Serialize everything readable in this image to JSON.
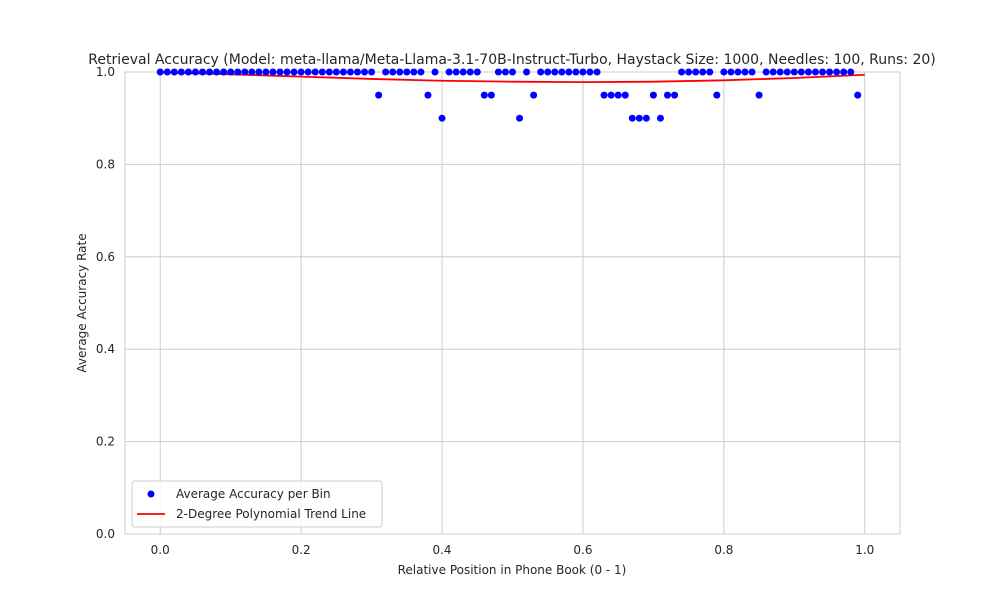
{
  "chart_data": {
    "type": "scatter",
    "title": "Retrieval Accuracy (Model: meta-llama/Meta-Llama-3.1-70B-Instruct-Turbo, Haystack Size: 1000, Needles: 100, Runs: 20)",
    "xlabel": "Relative Position in Phone Book (0 - 1)",
    "ylabel": "Average Accuracy Rate",
    "xlim": [
      -0.05,
      1.05
    ],
    "ylim": [
      0.0,
      1.0
    ],
    "xticks": [
      0.0,
      0.2,
      0.4,
      0.6,
      0.8,
      1.0
    ],
    "yticks": [
      0.0,
      0.2,
      0.4,
      0.6,
      0.8,
      1.0
    ],
    "xtick_labels": [
      "0.0",
      "0.2",
      "0.4",
      "0.6",
      "0.8",
      "1.0"
    ],
    "ytick_labels": [
      "0.0",
      "0.2",
      "0.4",
      "0.6",
      "0.8",
      "1.0"
    ],
    "grid": true,
    "legend_position": "lower-left",
    "series": [
      {
        "name": "Average Accuracy per Bin",
        "kind": "scatter",
        "color": "#0000ff",
        "x": [
          0.0,
          0.01,
          0.02,
          0.03,
          0.04,
          0.05,
          0.06,
          0.07,
          0.08,
          0.09,
          0.1,
          0.11,
          0.12,
          0.13,
          0.14,
          0.15,
          0.16,
          0.17,
          0.18,
          0.19,
          0.2,
          0.21,
          0.22,
          0.23,
          0.24,
          0.25,
          0.26,
          0.27,
          0.28,
          0.29,
          0.3,
          0.31,
          0.32,
          0.33,
          0.34,
          0.35,
          0.36,
          0.37,
          0.38,
          0.39,
          0.4,
          0.41,
          0.42,
          0.43,
          0.44,
          0.45,
          0.46,
          0.47,
          0.48,
          0.49,
          0.5,
          0.51,
          0.52,
          0.53,
          0.54,
          0.55,
          0.56,
          0.57,
          0.58,
          0.59,
          0.6,
          0.61,
          0.62,
          0.63,
          0.64,
          0.65,
          0.66,
          0.67,
          0.68,
          0.69,
          0.7,
          0.71,
          0.72,
          0.73,
          0.74,
          0.75,
          0.76,
          0.77,
          0.78,
          0.79,
          0.8,
          0.81,
          0.82,
          0.83,
          0.84,
          0.85,
          0.86,
          0.87,
          0.88,
          0.89,
          0.9,
          0.91,
          0.92,
          0.93,
          0.94,
          0.95,
          0.96,
          0.97,
          0.98,
          0.99
        ],
        "y": [
          1.0,
          1.0,
          1.0,
          1.0,
          1.0,
          1.0,
          1.0,
          1.0,
          1.0,
          1.0,
          1.0,
          1.0,
          1.0,
          1.0,
          1.0,
          1.0,
          1.0,
          1.0,
          1.0,
          1.0,
          1.0,
          1.0,
          1.0,
          1.0,
          1.0,
          1.0,
          1.0,
          1.0,
          1.0,
          1.0,
          1.0,
          0.95,
          1.0,
          1.0,
          1.0,
          1.0,
          1.0,
          1.0,
          0.95,
          1.0,
          0.9,
          1.0,
          1.0,
          1.0,
          1.0,
          1.0,
          0.95,
          0.95,
          1.0,
          1.0,
          1.0,
          0.9,
          1.0,
          0.95,
          1.0,
          1.0,
          1.0,
          1.0,
          1.0,
          1.0,
          1.0,
          1.0,
          1.0,
          0.95,
          0.95,
          0.95,
          0.95,
          0.9,
          0.9,
          0.9,
          0.95,
          0.9,
          0.95,
          0.95,
          1.0,
          1.0,
          1.0,
          1.0,
          1.0,
          0.95,
          1.0,
          1.0,
          1.0,
          1.0,
          1.0,
          0.95,
          1.0,
          1.0,
          1.0,
          1.0,
          1.0,
          1.0,
          1.0,
          1.0,
          1.0,
          1.0,
          1.0,
          1.0,
          1.0,
          0.95
        ]
      },
      {
        "name": "2-Degree Polynomial Trend Line",
        "kind": "line",
        "color": "#ff0000",
        "x": [
          0.0,
          0.1,
          0.2,
          0.3,
          0.4,
          0.5,
          0.6,
          0.7,
          0.8,
          0.9,
          1.0
        ],
        "y": [
          0.999,
          0.995,
          0.99,
          0.985,
          0.981,
          0.979,
          0.978,
          0.979,
          0.982,
          0.987,
          0.994
        ]
      }
    ]
  }
}
